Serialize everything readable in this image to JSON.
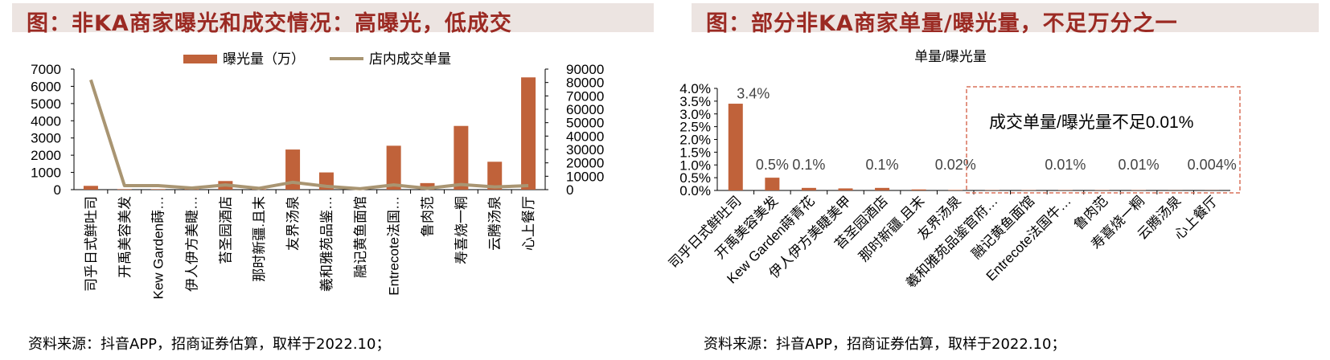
{
  "left": {
    "title": "图：非KA商家曝光和成交情况：高曝光，低成交",
    "source": "资料来源：抖音APP，招商证券估算，取样于2022.10；"
  },
  "right": {
    "title": "图：部分非KA商家单量/曝光量，不足万分之一",
    "source": "资料来源：抖音APP，招商证券估算，取样于2022.10；",
    "annotation": "成交单量/曝光量不足0.01%"
  },
  "colors": {
    "bar": "#c0623a",
    "line": "#a99572",
    "title": "#9b2a23",
    "title_bg": "#ece4e1",
    "annotation_box": "#d9715a"
  },
  "chart_data": [
    {
      "type": "bar",
      "title": "",
      "categories": [
        "司乎日式鲜吐司",
        "开禹美容美发",
        "Kew Garden蒔…",
        "伊人伊方美睫…",
        "苔圣园酒店",
        "那时新疆.且末",
        "友界汤泉",
        "羲和雅苑品鉴…",
        "融记黄鱼面馆",
        "Entrecote法国…",
        "鲁肉范",
        "寿喜烧一粡",
        "云腾汤泉",
        "心上餐厅"
      ],
      "series": [
        {
          "name": "曝光量（万）",
          "type": "bar",
          "axis": "left",
          "values": [
            220,
            30,
            30,
            30,
            500,
            30,
            2330,
            1000,
            30,
            2550,
            380,
            3700,
            1620,
            6520
          ]
        },
        {
          "name": "店内成交单量",
          "type": "line",
          "axis": "right",
          "values": [
            82000,
            3000,
            3000,
            1200,
            3500,
            1000,
            5500,
            2500,
            700,
            3500,
            1000,
            3800,
            2000,
            3000
          ]
        }
      ],
      "ylim_left": [
        0,
        7000
      ],
      "yticks_left": [
        "0",
        "1000",
        "2000",
        "3000",
        "4000",
        "5000",
        "6000",
        "7000"
      ],
      "ylim_right": [
        0,
        90000
      ],
      "yticks_right": [
        "0",
        "10000",
        "20000",
        "30000",
        "40000",
        "50000",
        "60000",
        "70000",
        "80000",
        "90000"
      ],
      "legend": "top"
    },
    {
      "type": "bar",
      "title": "单量/曝光量",
      "categories": [
        "司乎日式鲜吐司",
        "开禹美容美发",
        "Kew Garden蒔青花",
        "伊人伊方美睫美甲",
        "苔圣园酒店",
        "那时新疆.且末",
        "友界汤泉",
        "羲和雅苑品鉴官府…",
        "融记黄鱼面馆",
        "Entrecote法国牛…",
        "鲁肉范",
        "寿喜烧一粡",
        "云腾汤泉",
        "心上餐厅"
      ],
      "values": [
        3.4,
        0.5,
        0.1,
        0.08,
        0.1,
        0.04,
        0.02,
        0.01,
        0.01,
        0.01,
        0.01,
        0.01,
        0.004,
        0.004
      ],
      "data_labels": [
        "3.4%",
        "0.5%",
        "0.1%",
        "",
        "0.1%",
        "",
        "0.02%",
        "",
        "",
        "0.01%",
        "",
        "0.01%",
        "",
        "0.004%"
      ],
      "ylim": [
        0,
        4.0
      ],
      "yticks": [
        "0.0%",
        "0.5%",
        "1.0%",
        "1.5%",
        "2.0%",
        "2.5%",
        "3.0%",
        "3.5%",
        "4.0%"
      ],
      "legend": "none"
    }
  ]
}
